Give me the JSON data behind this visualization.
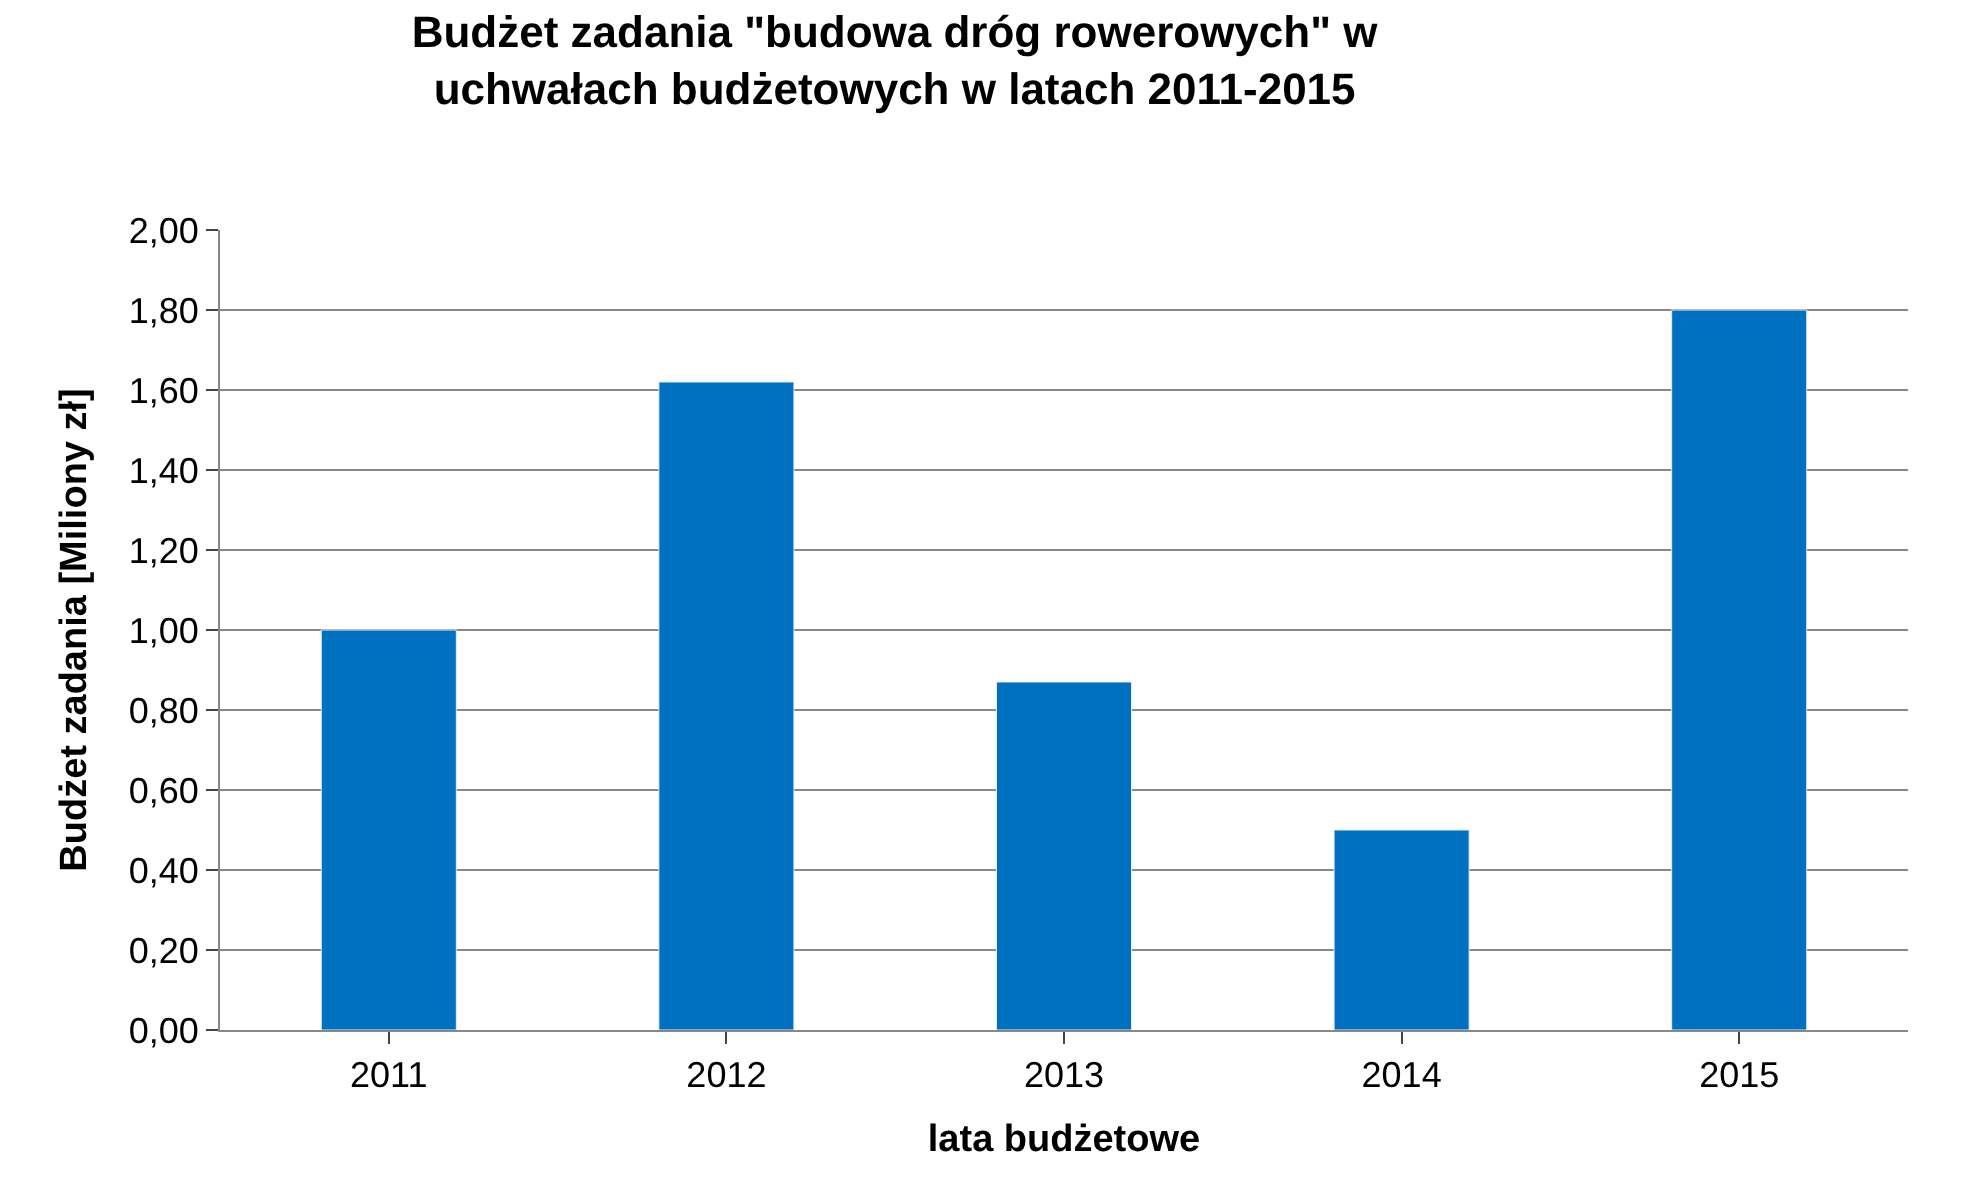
{
  "chart_data": {
    "type": "bar",
    "title": "Budżet zadania \"budowa dróg rowerowych\" w uchwałach budżetowych w latach 2011-2015",
    "xlabel": "lata budżetowe",
    "ylabel": "Budżet zadania [Miliony zł]",
    "categories": [
      "2011",
      "2012",
      "2013",
      "2014",
      "2015"
    ],
    "values": [
      1.0,
      1.62,
      0.87,
      0.5,
      1.8
    ],
    "color": "#0070c0",
    "ylim": [
      0,
      2
    ],
    "yticks": [
      {
        "value": 0,
        "label": "0,00"
      },
      {
        "value": 0.2,
        "label": "0,20"
      },
      {
        "value": 0.4,
        "label": "0,40"
      },
      {
        "value": 0.6,
        "label": "0,60"
      },
      {
        "value": 0.8,
        "label": "0,80"
      },
      {
        "value": 1.0,
        "label": "1,00"
      },
      {
        "value": 1.2,
        "label": "1,20"
      },
      {
        "value": 1.4,
        "label": "1,40"
      },
      {
        "value": 1.6,
        "label": "1,60"
      },
      {
        "value": 1.8,
        "label": "1,80"
      },
      {
        "value": 2.0,
        "label": "2,00"
      }
    ],
    "grid": "y"
  }
}
